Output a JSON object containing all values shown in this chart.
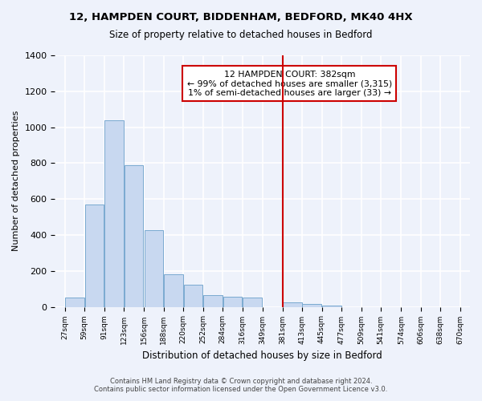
{
  "title": "12, HAMPDEN COURT, BIDDENHAM, BEDFORD, MK40 4HX",
  "subtitle": "Size of property relative to detached houses in Bedford",
  "xlabel": "Distribution of detached houses by size in Bedford",
  "ylabel": "Number of detached properties",
  "bar_color": "#c8d8f0",
  "bar_edge_color": "#7aaad0",
  "bin_labels": [
    "27sqm",
    "59sqm",
    "91sqm",
    "123sqm",
    "156sqm",
    "188sqm",
    "220sqm",
    "252sqm",
    "284sqm",
    "316sqm",
    "349sqm",
    "381sqm",
    "413sqm",
    "445sqm",
    "477sqm",
    "509sqm",
    "541sqm",
    "574sqm",
    "606sqm",
    "638sqm",
    "670sqm"
  ],
  "bin_edges": [
    27,
    59,
    91,
    123,
    156,
    188,
    220,
    252,
    284,
    316,
    349,
    381,
    413,
    445,
    477,
    509,
    541,
    574,
    606,
    638,
    670
  ],
  "bar_heights": [
    50,
    570,
    1040,
    790,
    425,
    180,
    125,
    65,
    55,
    50,
    0,
    25,
    15,
    5,
    0,
    0,
    0,
    0,
    0,
    0
  ],
  "ylim": [
    0,
    1400
  ],
  "yticks": [
    0,
    200,
    400,
    600,
    800,
    1000,
    1200,
    1400
  ],
  "property_size": 382,
  "vline_color": "#cc0000",
  "annotation_title": "12 HAMPDEN COURT: 382sqm",
  "annotation_line1": "← 99% of detached houses are smaller (3,315)",
  "annotation_line2": "1% of semi-detached houses are larger (33) →",
  "annotation_box_color": "#ffffff",
  "annotation_box_edge": "#cc0000",
  "footer_line1": "Contains HM Land Registry data © Crown copyright and database right 2024.",
  "footer_line2": "Contains public sector information licensed under the Open Government Licence v3.0.",
  "background_color": "#eef2fb",
  "grid_color": "#ffffff"
}
